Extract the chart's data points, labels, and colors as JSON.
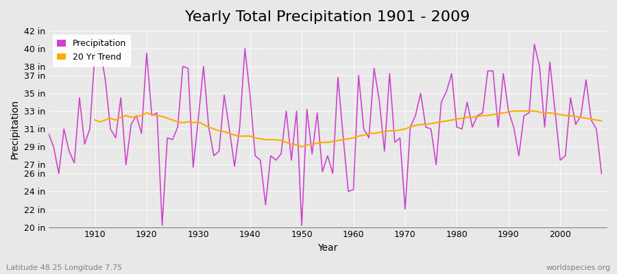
{
  "title": "Yearly Total Precipitation 1901 - 2009",
  "xlabel": "Year",
  "ylabel": "Precipitation",
  "subtitle_left": "Latitude 48.25 Longitude 7.75",
  "subtitle_right": "worldspecies.org",
  "years": [
    1901,
    1902,
    1903,
    1904,
    1905,
    1906,
    1907,
    1908,
    1909,
    1910,
    1911,
    1912,
    1913,
    1914,
    1915,
    1916,
    1917,
    1918,
    1919,
    1920,
    1921,
    1922,
    1923,
    1924,
    1925,
    1926,
    1927,
    1928,
    1929,
    1930,
    1931,
    1932,
    1933,
    1934,
    1935,
    1936,
    1937,
    1938,
    1939,
    1940,
    1941,
    1942,
    1943,
    1944,
    1945,
    1946,
    1947,
    1948,
    1949,
    1950,
    1951,
    1952,
    1953,
    1954,
    1955,
    1956,
    1957,
    1958,
    1959,
    1960,
    1961,
    1962,
    1963,
    1964,
    1965,
    1966,
    1967,
    1968,
    1969,
    1970,
    1971,
    1972,
    1973,
    1974,
    1975,
    1976,
    1977,
    1978,
    1979,
    1980,
    1981,
    1982,
    1983,
    1984,
    1985,
    1986,
    1987,
    1988,
    1989,
    1990,
    1991,
    1992,
    1993,
    1994,
    1995,
    1996,
    1997,
    1998,
    1999,
    2000,
    2001,
    2002,
    2003,
    2004,
    2005,
    2006,
    2007,
    2008,
    2009
  ],
  "precip": [
    30.5,
    29.0,
    26.0,
    31.0,
    28.5,
    27.2,
    34.5,
    29.3,
    31.0,
    39.5,
    40.0,
    36.5,
    31.0,
    30.0,
    34.5,
    27.0,
    31.5,
    32.5,
    30.5,
    39.5,
    32.5,
    32.8,
    20.2,
    30.0,
    29.8,
    31.2,
    38.0,
    37.8,
    26.7,
    32.2,
    38.0,
    31.2,
    28.0,
    28.5,
    34.8,
    31.0,
    26.8,
    31.2,
    40.0,
    34.8,
    28.0,
    27.5,
    22.5,
    28.0,
    27.5,
    28.2,
    33.0,
    27.5,
    33.0,
    20.2,
    33.2,
    28.2,
    32.8,
    26.2,
    28.0,
    26.0,
    36.8,
    30.2,
    24.0,
    24.2,
    37.0,
    31.0,
    30.0,
    37.8,
    34.2,
    28.5,
    37.2,
    29.5,
    30.0,
    22.0,
    31.2,
    32.5,
    35.0,
    31.2,
    31.0,
    27.0,
    34.0,
    35.2,
    37.2,
    31.2,
    31.0,
    34.0,
    31.2,
    32.5,
    32.8,
    37.5,
    37.5,
    31.2,
    37.2,
    33.0,
    31.2,
    28.0,
    32.5,
    32.8,
    40.5,
    38.0,
    31.2,
    38.5,
    33.0,
    27.5,
    28.0,
    34.5,
    31.5,
    32.5,
    36.5,
    32.0,
    31.0,
    26.0,
    31.0
  ],
  "trend": [
    null,
    null,
    null,
    null,
    null,
    null,
    null,
    null,
    null,
    32.0,
    31.8,
    32.0,
    32.2,
    32.0,
    32.3,
    32.5,
    32.3,
    32.4,
    32.5,
    32.8,
    32.6,
    32.5,
    32.4,
    32.2,
    32.0,
    31.8,
    31.7,
    31.8,
    31.7,
    31.8,
    31.5,
    31.2,
    31.0,
    30.8,
    30.7,
    30.5,
    30.3,
    30.2,
    30.2,
    30.2,
    30.0,
    29.9,
    29.8,
    29.8,
    29.8,
    29.7,
    29.5,
    29.3,
    29.2,
    29.0,
    29.2,
    29.3,
    29.4,
    29.5,
    29.5,
    29.6,
    29.7,
    29.8,
    29.9,
    30.0,
    30.2,
    30.3,
    30.5,
    30.5,
    30.6,
    30.7,
    30.8,
    30.8,
    30.9,
    31.0,
    31.2,
    31.4,
    31.5,
    31.5,
    31.6,
    31.7,
    31.8,
    31.9,
    32.0,
    32.1,
    32.2,
    32.3,
    32.3,
    32.4,
    32.5,
    32.5,
    32.6,
    32.7,
    32.8,
    32.9,
    33.0,
    33.0,
    33.0,
    33.0,
    33.0,
    32.9,
    32.8,
    32.8,
    32.7,
    32.6,
    32.5,
    32.5,
    32.4,
    32.3,
    32.2,
    32.1,
    32.0,
    31.9
  ],
  "precip_color": "#cc44cc",
  "trend_color": "#ffaa00",
  "background_color": "#e8e8e8",
  "plot_bg_color": "#e8e8e8",
  "ylim": [
    20,
    42
  ],
  "yticks": [
    20,
    22,
    24,
    26,
    27,
    29,
    31,
    33,
    35,
    37,
    38,
    40,
    42
  ],
  "xlim": [
    1901,
    2009
  ],
  "xticks": [
    1910,
    1920,
    1930,
    1940,
    1950,
    1960,
    1970,
    1980,
    1990,
    2000
  ],
  "title_fontsize": 16,
  "axis_label_fontsize": 10,
  "tick_label_fontsize": 9,
  "legend_fontsize": 9,
  "footer_fontsize": 8
}
